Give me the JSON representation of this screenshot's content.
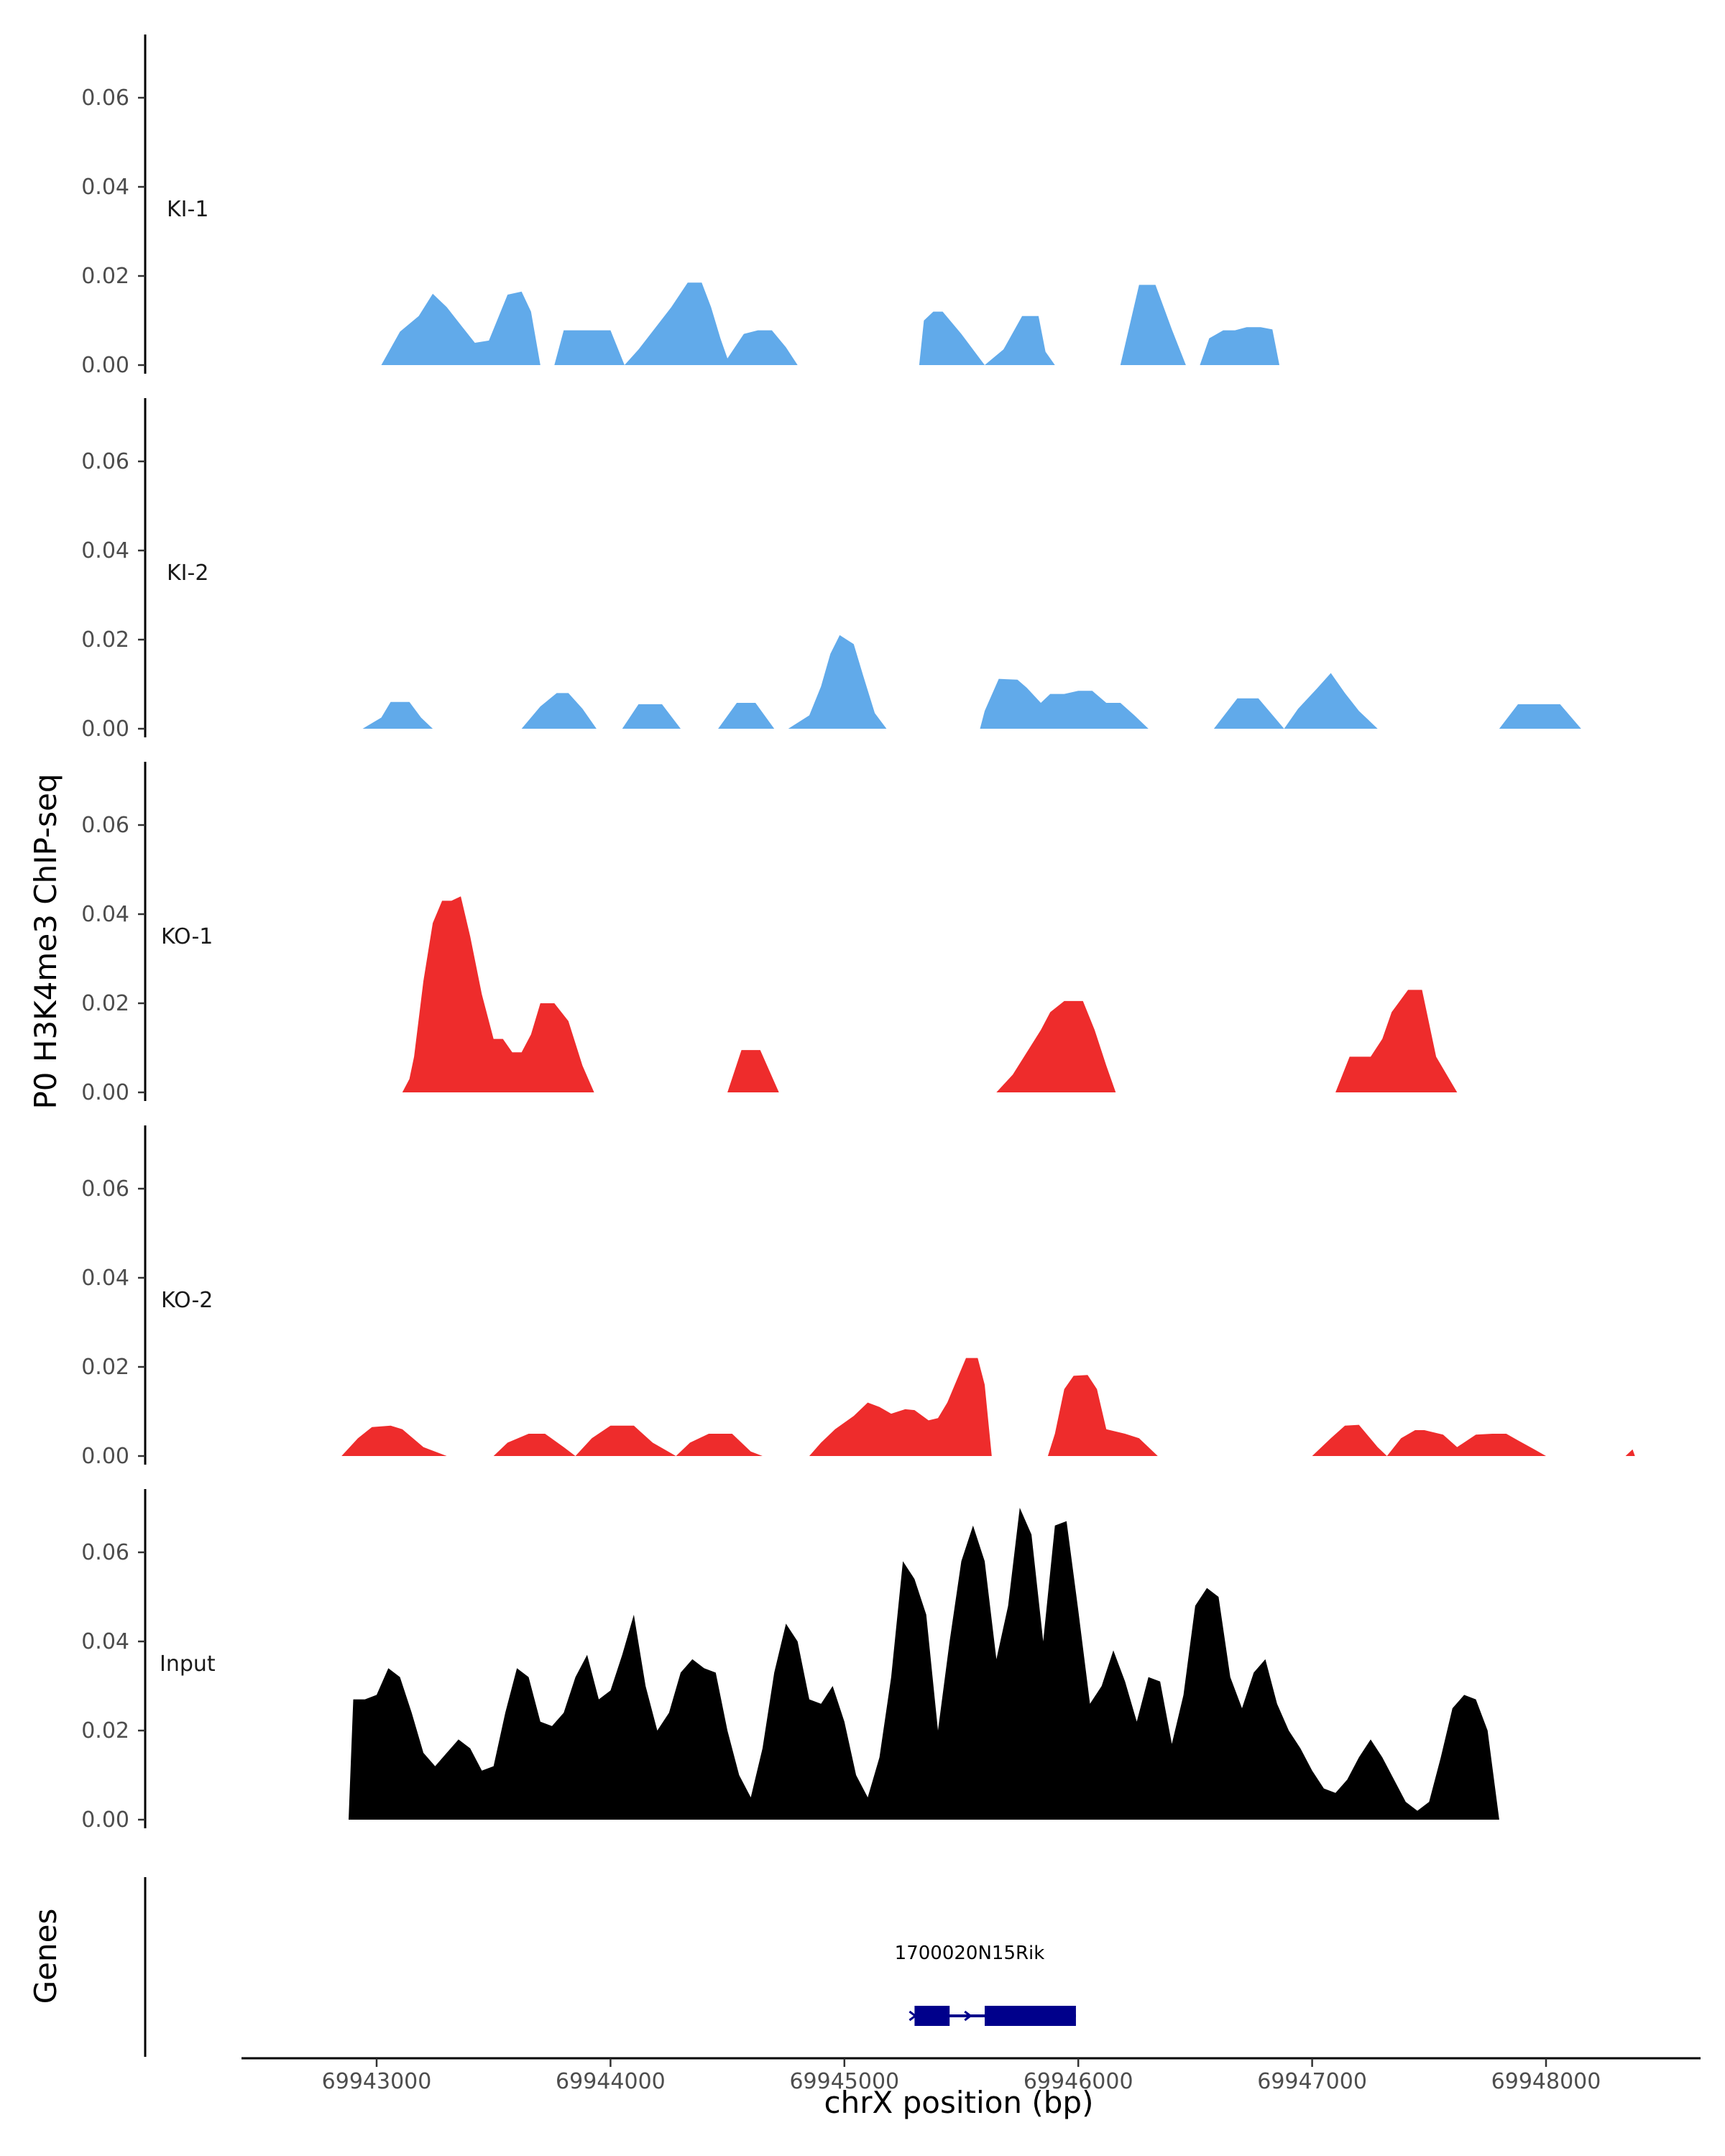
{
  "chart_data": {
    "type": "area",
    "ylabel": "P0 H3K4me3 ChIP-seq",
    "xlabel": "chrX position (bp)",
    "genes_label": "Genes",
    "ylim": [
      0,
      0.075
    ],
    "yticks": [
      "0.00",
      "0.02",
      "0.04",
      "0.06"
    ],
    "yticks_values": [
      0,
      0.02,
      0.04,
      0.06
    ],
    "xlim": [
      69942500,
      69948740
    ],
    "xticks": [
      "69943000",
      "69944000",
      "69945000",
      "69946000",
      "69947000",
      "69948000"
    ],
    "xticks_values": [
      69943000,
      69944000,
      69945000,
      69946000,
      69947000,
      69948000
    ],
    "colors": {
      "KI": "#61aaea",
      "KO": "#ee2c2c",
      "Input": "#000000",
      "gene": "#00008b",
      "axis": "#000000"
    },
    "tracks": [
      {
        "name": "KI-1",
        "color": "#61aaea",
        "x": [
          69943020,
          69943100,
          69943180,
          69943240,
          69943300,
          69943360,
          69943420,
          69943480,
          69943560,
          69943620,
          69943660,
          69943700,
          69943760,
          69943800,
          69943850,
          69944000,
          69944060,
          69944120,
          69944260,
          69944330,
          69944390,
          69944430,
          69944470,
          69944500,
          69944570,
          69944630,
          69944690,
          69944750,
          69944800,
          69944850,
          69944900,
          69944950,
          69945000,
          69945050,
          69945100,
          69945140,
          69945180,
          69945260,
          69945320,
          69945340,
          69945380,
          69945420,
          69945500,
          69945600,
          69945680,
          69945760,
          69945830,
          69945860,
          69945900,
          69945960,
          69946020,
          69946060,
          69946140,
          69946180,
          69946260,
          69946330,
          69946400,
          69946460,
          69946520,
          69946560,
          69946620,
          69946670,
          69946720,
          69946780,
          69946830,
          69946860,
          69946920,
          69946980,
          69947040,
          69947090,
          69947130,
          69947180,
          69947280,
          69947340,
          69947400,
          69947460,
          69947500,
          69947560
        ],
        "y": [
          0,
          0.0075,
          0.011,
          0.016,
          0.013,
          0.009,
          0.005,
          0.0055,
          0.0158,
          0.0165,
          0.012,
          0,
          0,
          0.0078,
          0.0078,
          0.0078,
          0,
          0.0035,
          0.013,
          0.0185,
          0.0185,
          0.013,
          0.006,
          0.0015,
          0.007,
          0.0078,
          0.0078,
          0.004,
          0,
          0,
          0,
          0,
          0,
          0,
          0,
          0,
          0,
          0,
          0,
          0.01,
          0.012,
          0.012,
          0.007,
          0,
          0.0035,
          0.011,
          0.011,
          0.003,
          0,
          0,
          0,
          0,
          0,
          0,
          0.018,
          0.018,
          0.008,
          0,
          0,
          0.006,
          0.0078,
          0.0078,
          0.0085,
          0.0085,
          0.008,
          0,
          0,
          0,
          0,
          0,
          0,
          0,
          0,
          0,
          0,
          0,
          0,
          0
        ]
      },
      {
        "name": "KI-2",
        "color": "#61aaea",
        "x": [
          69942940,
          69943020,
          69943060,
          69943140,
          69943190,
          69943240,
          69943620,
          69943700,
          69943770,
          69943820,
          69943880,
          69943940,
          69944050,
          69944120,
          69944220,
          69944300,
          69944460,
          69944540,
          69944620,
          69944700,
          69944760,
          69944850,
          69944900,
          69944940,
          69944980,
          69945040,
          69945080,
          69945130,
          69945180,
          69945240,
          69945300,
          69945580,
          69945600,
          69945660,
          69945740,
          69945780,
          69945840,
          69945880,
          69945940,
          69946000,
          69946060,
          69946120,
          69946180,
          69946240,
          69946300,
          69946580,
          69946680,
          69946770,
          69946880,
          69946940,
          69947020,
          69947080,
          69947140,
          69947200,
          69947280,
          69947380,
          69947800,
          69947880,
          69947970,
          69948060,
          69948150
        ],
        "y": [
          0,
          0.0025,
          0.006,
          0.006,
          0.0025,
          0,
          0,
          0.005,
          0.008,
          0.008,
          0.0045,
          0,
          0,
          0.0055,
          0.0055,
          0,
          0,
          0.0058,
          0.0058,
          0,
          0,
          0.003,
          0.0095,
          0.0168,
          0.021,
          0.019,
          0.012,
          0.0035,
          0,
          0,
          0,
          0,
          0.004,
          0.0112,
          0.011,
          0.0092,
          0.0058,
          0.0078,
          0.0078,
          0.0085,
          0.0085,
          0.0058,
          0.0058,
          0.003,
          0,
          0,
          0.0068,
          0.0068,
          0,
          0.0045,
          0.009,
          0.0125,
          0.008,
          0.004,
          0,
          0,
          0,
          0.0055,
          0.0055,
          0.0055,
          0
        ]
      },
      {
        "name": "KO-1",
        "color": "#ee2c2c",
        "x": [
          69943110,
          69943140,
          69943160,
          69943200,
          69943240,
          69943280,
          69943320,
          69943360,
          69943400,
          69943450,
          69943500,
          69943540,
          69943580,
          69943620,
          69943660,
          69943700,
          69943760,
          69943820,
          69943880,
          69943930,
          69943960,
          69944500,
          69944560,
          69944640,
          69944720,
          69944790,
          69945650,
          69945720,
          69945780,
          69945840,
          69945880,
          69945940,
          69946020,
          69946070,
          69946120,
          69946160,
          69946250,
          69946310,
          69946360,
          69946410,
          69946460,
          69947100,
          69947160,
          69947250,
          69947300,
          69947340,
          69947410,
          69947470,
          69947530,
          69947620,
          69947660,
          69947700
        ],
        "y": [
          0,
          0.003,
          0.008,
          0.025,
          0.038,
          0.043,
          0.043,
          0.044,
          0.035,
          0.022,
          0.012,
          0.012,
          0.009,
          0.009,
          0.013,
          0.02,
          0.02,
          0.016,
          0.006,
          0,
          0,
          0,
          0.0095,
          0.0095,
          0,
          0,
          0,
          0.004,
          0.009,
          0.014,
          0.018,
          0.0205,
          0.0205,
          0.014,
          0.006,
          0,
          0,
          0,
          0,
          0,
          0,
          0,
          0.008,
          0.008,
          0.012,
          0.018,
          0.023,
          0.023,
          0.008,
          0,
          0,
          0
        ]
      },
      {
        "name": "KO-2",
        "color": "#ee2c2c",
        "x": [
          69942850,
          69942920,
          69942980,
          69943060,
          69943110,
          69943200,
          69943300,
          69943500,
          69943560,
          69943650,
          69943720,
          69943800,
          69943850,
          69943850,
          69943920,
          69944000,
          69944100,
          69944180,
          69944280,
          69944280,
          69944340,
          69944420,
          69944520,
          69944600,
          69944650,
          69944850,
          69944900,
          69944960,
          69945040,
          69945100,
          69945150,
          69945200,
          69945260,
          69945300,
          69945360,
          69945400,
          69945440,
          69945480,
          69945520,
          69945570,
          69945600,
          69945630,
          69945640,
          69945870,
          69945900,
          69945940,
          69945980,
          69946040,
          69946080,
          69946120,
          69946160,
          69946200,
          69946260,
          69946340,
          69946400,
          69947000,
          69947080,
          69947140,
          69947200,
          69947280,
          69947320,
          69947380,
          69947440,
          69947480,
          69947560,
          69947620,
          69947700,
          69947770,
          69947830,
          69947880,
          69947950,
          69948000,
          69948340,
          69948370,
          69948380
        ],
        "y": [
          0,
          0.004,
          0.0065,
          0.0068,
          0.006,
          0.002,
          0,
          0,
          0.003,
          0.005,
          0.005,
          0.002,
          0,
          0,
          0.004,
          0.0068,
          0.0068,
          0.003,
          0,
          0,
          0.003,
          0.005,
          0.005,
          0.001,
          0,
          0,
          0.003,
          0.006,
          0.009,
          0.012,
          0.011,
          0.0095,
          0.0105,
          0.0103,
          0.008,
          0.0085,
          0.012,
          0.017,
          0.022,
          0.022,
          0.016,
          0,
          0,
          0,
          0.005,
          0.015,
          0.018,
          0.0182,
          0.015,
          0.006,
          0.0055,
          0.005,
          0.004,
          0,
          0,
          0,
          0.004,
          0.0068,
          0.007,
          0.002,
          0,
          0.004,
          0.0058,
          0.0058,
          0.0048,
          0.002,
          0.0048,
          0.005,
          0.005,
          0.0035,
          0.0015,
          0,
          0,
          0.0015,
          0
        ]
      },
      {
        "name": "Input",
        "color": "#000000",
        "x": [
          69942880,
          69942900,
          69942950,
          69943000,
          69943050,
          69943100,
          69943150,
          69943200,
          69943250,
          69943300,
          69943350,
          69943400,
          69943450,
          69943500,
          69943550,
          69943600,
          69943650,
          69943700,
          69943750,
          69943800,
          69943850,
          69943900,
          69943950,
          69944000,
          69944050,
          69944100,
          69944150,
          69944200,
          69944250,
          69944300,
          69944350,
          69944400,
          69944450,
          69944500,
          69944550,
          69944600,
          69944650,
          69944700,
          69944750,
          69944800,
          69944850,
          69944900,
          69944950,
          69945000,
          69945050,
          69945100,
          69945150,
          69945200,
          69945250,
          69945300,
          69945350,
          69945400,
          69945450,
          69945500,
          69945550,
          69945600,
          69945650,
          69945700,
          69945750,
          69945800,
          69945850,
          69945900,
          69945950,
          69946000,
          69946050,
          69946100,
          69946150,
          69946200,
          69946250,
          69946300,
          69946350,
          69946400,
          69946450,
          69946500,
          69946550,
          69946600,
          69946650,
          69946700,
          69946750,
          69946800,
          69946850,
          69946900,
          69946950,
          69947000,
          69947050,
          69947100,
          69947150,
          69947200,
          69947250,
          69947300,
          69947350,
          69947400,
          69947450,
          69947500,
          69947550,
          69947600,
          69947650,
          69947700,
          69947750,
          69947800,
          69947850,
          69947900,
          69947950,
          69948000,
          69948050,
          69948100,
          69948150,
          69948200,
          69948250,
          69948300,
          69948350,
          69948380,
          69948380
        ],
        "y": [
          0,
          0.027,
          0.027,
          0.028,
          0.034,
          0.032,
          0.024,
          0.015,
          0.012,
          0.015,
          0.018,
          0.016,
          0.011,
          0.012,
          0.024,
          0.034,
          0.032,
          0.022,
          0.021,
          0.024,
          0.032,
          0.037,
          0.027,
          0.029,
          0.037,
          0.046,
          0.03,
          0.02,
          0.024,
          0.033,
          0.036,
          0.034,
          0.033,
          0.02,
          0.01,
          0.005,
          0.016,
          0.033,
          0.044,
          0.04,
          0.027,
          0.026,
          0.03,
          0.022,
          0.01,
          0.005,
          0.014,
          0.032,
          0.058,
          0.054,
          0.046,
          0.02,
          0.04,
          0.058,
          0.066,
          0.058,
          0.036,
          0.048,
          0.07,
          0.064,
          0.04,
          0.066,
          0.067,
          0.047,
          0.026,
          0.03,
          0.038,
          0.031,
          0.022,
          0.032,
          0.031,
          0.017,
          0.028,
          0.048,
          0.052,
          0.05,
          0.032,
          0.025,
          0.033,
          0.036,
          0.026,
          0.02,
          0.016,
          0.011,
          0.007,
          0.006,
          0.009,
          0.014,
          0.018,
          0.014,
          0.009,
          0.004,
          0.002,
          0.004,
          0.014,
          0.025,
          0.028,
          0.027,
          0.02,
          0,
          0,
          0,
          0,
          0,
          0,
          0,
          0,
          0,
          0,
          0,
          0,
          0,
          0
        ]
      }
    ],
    "gene": {
      "label": "1700020N15Rik",
      "start": 69945300,
      "end": 69945990,
      "exons": [
        [
          69945300,
          69945450
        ],
        [
          69945600,
          69945990
        ]
      ],
      "strand": "+"
    }
  }
}
